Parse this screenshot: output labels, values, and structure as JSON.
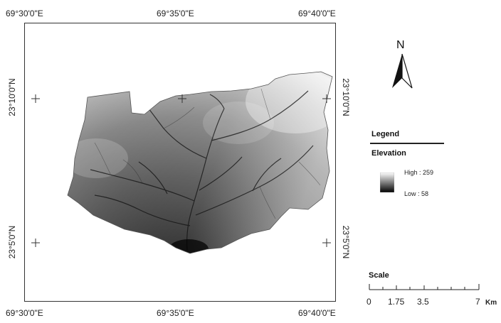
{
  "top_labels": [
    "69°30'0\"E",
    "69°35'0\"E",
    "69°40'0\"E"
  ],
  "bottom_labels": [
    "69°30'0\"E",
    "69°35'0\"E",
    "69°40'0\"E"
  ],
  "left_labels": [
    "23°10'0\"N",
    "23°5'0\"N"
  ],
  "right_labels": [
    "23°10'0\"N",
    "23°5'0\"N"
  ],
  "north_arrow": {
    "label": "N",
    "icon": "north-arrow-icon"
  },
  "legend": {
    "title": "Legend",
    "layer": "Elevation",
    "high_label": "High : 259",
    "low_label": "Low : 58",
    "colors": {
      "high": "#ffffff",
      "low": "#000000"
    }
  },
  "scale": {
    "title": "Scale",
    "ticks": [
      "0",
      "1.75",
      "3.5",
      "7"
    ],
    "unit": "Km"
  }
}
